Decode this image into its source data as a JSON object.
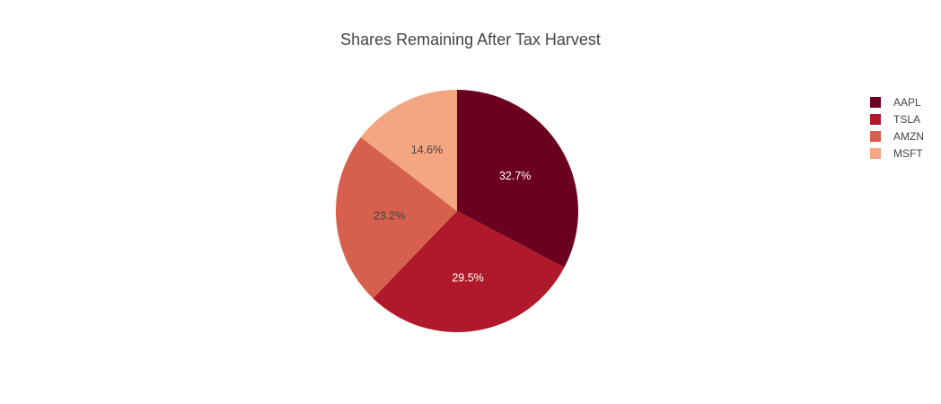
{
  "chart_data": {
    "type": "pie",
    "title": "Shares Remaining After Tax Harvest",
    "categories": [
      "AAPL",
      "TSLA",
      "AMZN",
      "MSFT"
    ],
    "values": [
      32.7,
      29.5,
      23.2,
      14.6
    ],
    "labels": [
      "32.7%",
      "29.5%",
      "23.2%",
      "14.6%"
    ],
    "colors": [
      "#6b0020",
      "#b0192b",
      "#d6604d",
      "#f4a582"
    ],
    "label_colors": [
      "#ffffff",
      "#ffffff",
      "#444444",
      "#444444"
    ],
    "direction": "clockwise",
    "start": "top",
    "legend_position": "top-right"
  }
}
